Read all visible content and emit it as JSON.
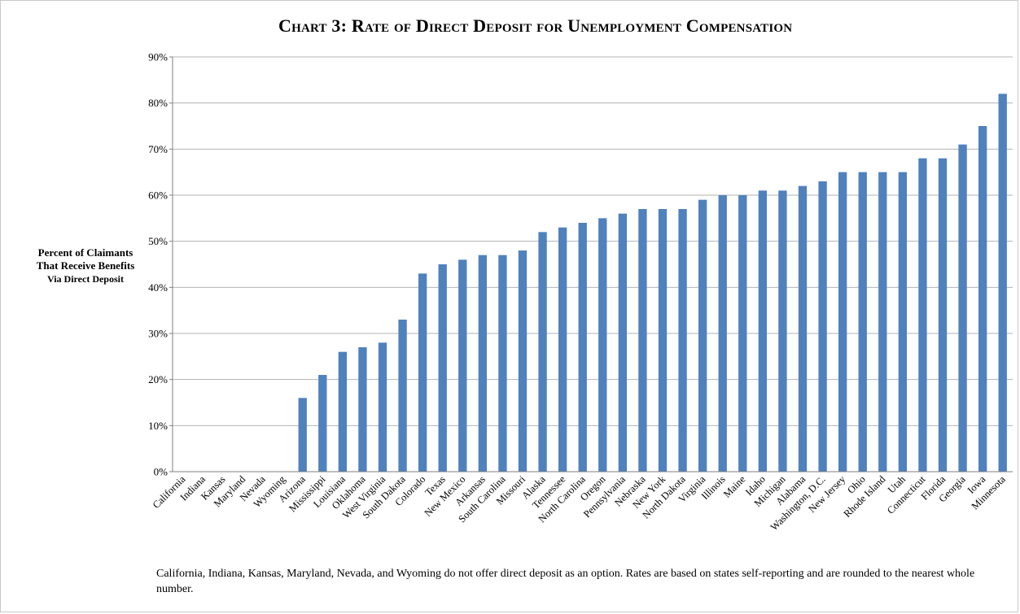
{
  "chart_data": {
    "type": "bar",
    "title": "Chart 3: Rate of Direct Deposit for Unemployment Compensation",
    "ylabel_lines": [
      "Percent of Claimants",
      "That Receive Benefits",
      "Via Direct Deposit"
    ],
    "xlabel": "",
    "ylim": [
      0,
      90
    ],
    "yticks": [
      0,
      10,
      20,
      30,
      40,
      50,
      60,
      70,
      80,
      90
    ],
    "ytick_suffix": "%",
    "grid": true,
    "bar_color": "#4f81bd",
    "grid_color": "#b3b3b3",
    "categories": [
      "California",
      "Indiana",
      "Kansas",
      "Maryland",
      "Nevada",
      "Wyoming",
      "Arizona",
      "Mississippi",
      "Louisiana",
      "Oklahoma",
      "West Virginia",
      "South Dakota",
      "Colorado",
      "Texas",
      "New Mexico",
      "Arkansas",
      "South Carolina",
      "Missouri",
      "Alaska",
      "Tennessee",
      "North Carolina",
      "Oregon",
      "Pennsylvania",
      "Nebraska",
      "New York",
      "North Dakota",
      "Virginia",
      "Illinois",
      "Maine",
      "Idaho",
      "Michigan",
      "Alabama",
      "Washington, D.C.",
      "New Jersey",
      "Ohio",
      "Rhode Island",
      "Utah",
      "Connecticut",
      "Florida",
      "Georgia",
      "Iowa",
      "Minnesota"
    ],
    "values": [
      0,
      0,
      0,
      0,
      0,
      0,
      16,
      21,
      26,
      27,
      28,
      33,
      43,
      45,
      46,
      47,
      47,
      48,
      52,
      53,
      54,
      55,
      56,
      57,
      57,
      57,
      59,
      60,
      60,
      61,
      61,
      62,
      63,
      65,
      65,
      65,
      65,
      68,
      68,
      71,
      75,
      82
    ]
  },
  "footnote": "California, Indiana, Kansas, Maryland, Nevada, and Wyoming do not offer direct deposit as an option. Rates are based on states self-reporting and are rounded to the nearest whole number."
}
